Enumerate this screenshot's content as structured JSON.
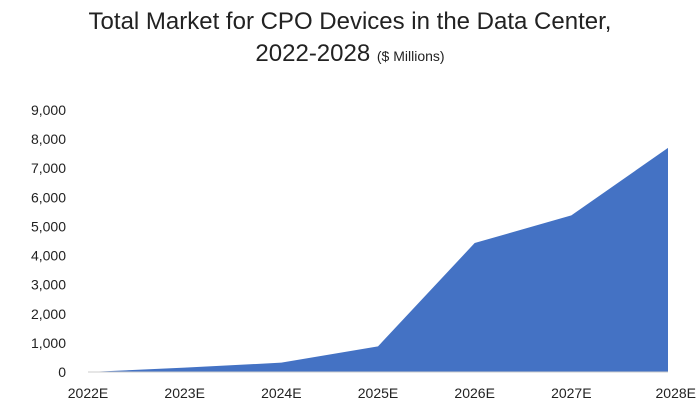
{
  "chart_data": {
    "type": "area",
    "title_line1": "Total Market for CPO Devices in the Data Center,",
    "title_line2": "2022-2028",
    "subtitle": "($ Millions)",
    "categories": [
      "2022E",
      "2023E",
      "2024E",
      "2025E",
      "2026E",
      "2027E",
      "2028E"
    ],
    "series": [
      {
        "name": "Total Market",
        "values": [
          0,
          150,
          320,
          880,
          4430,
          5380,
          7700
        ]
      }
    ],
    "y_ticks": [
      "0",
      "1,000",
      "2,000",
      "3,000",
      "4,000",
      "5,000",
      "6,000",
      "7,000",
      "8,000",
      "9,000"
    ],
    "ylim": [
      0,
      9000
    ],
    "xlabel": "",
    "ylabel": "",
    "grid": false,
    "colors": {
      "fill": "#4472C4",
      "axis": "#cccccc"
    }
  }
}
